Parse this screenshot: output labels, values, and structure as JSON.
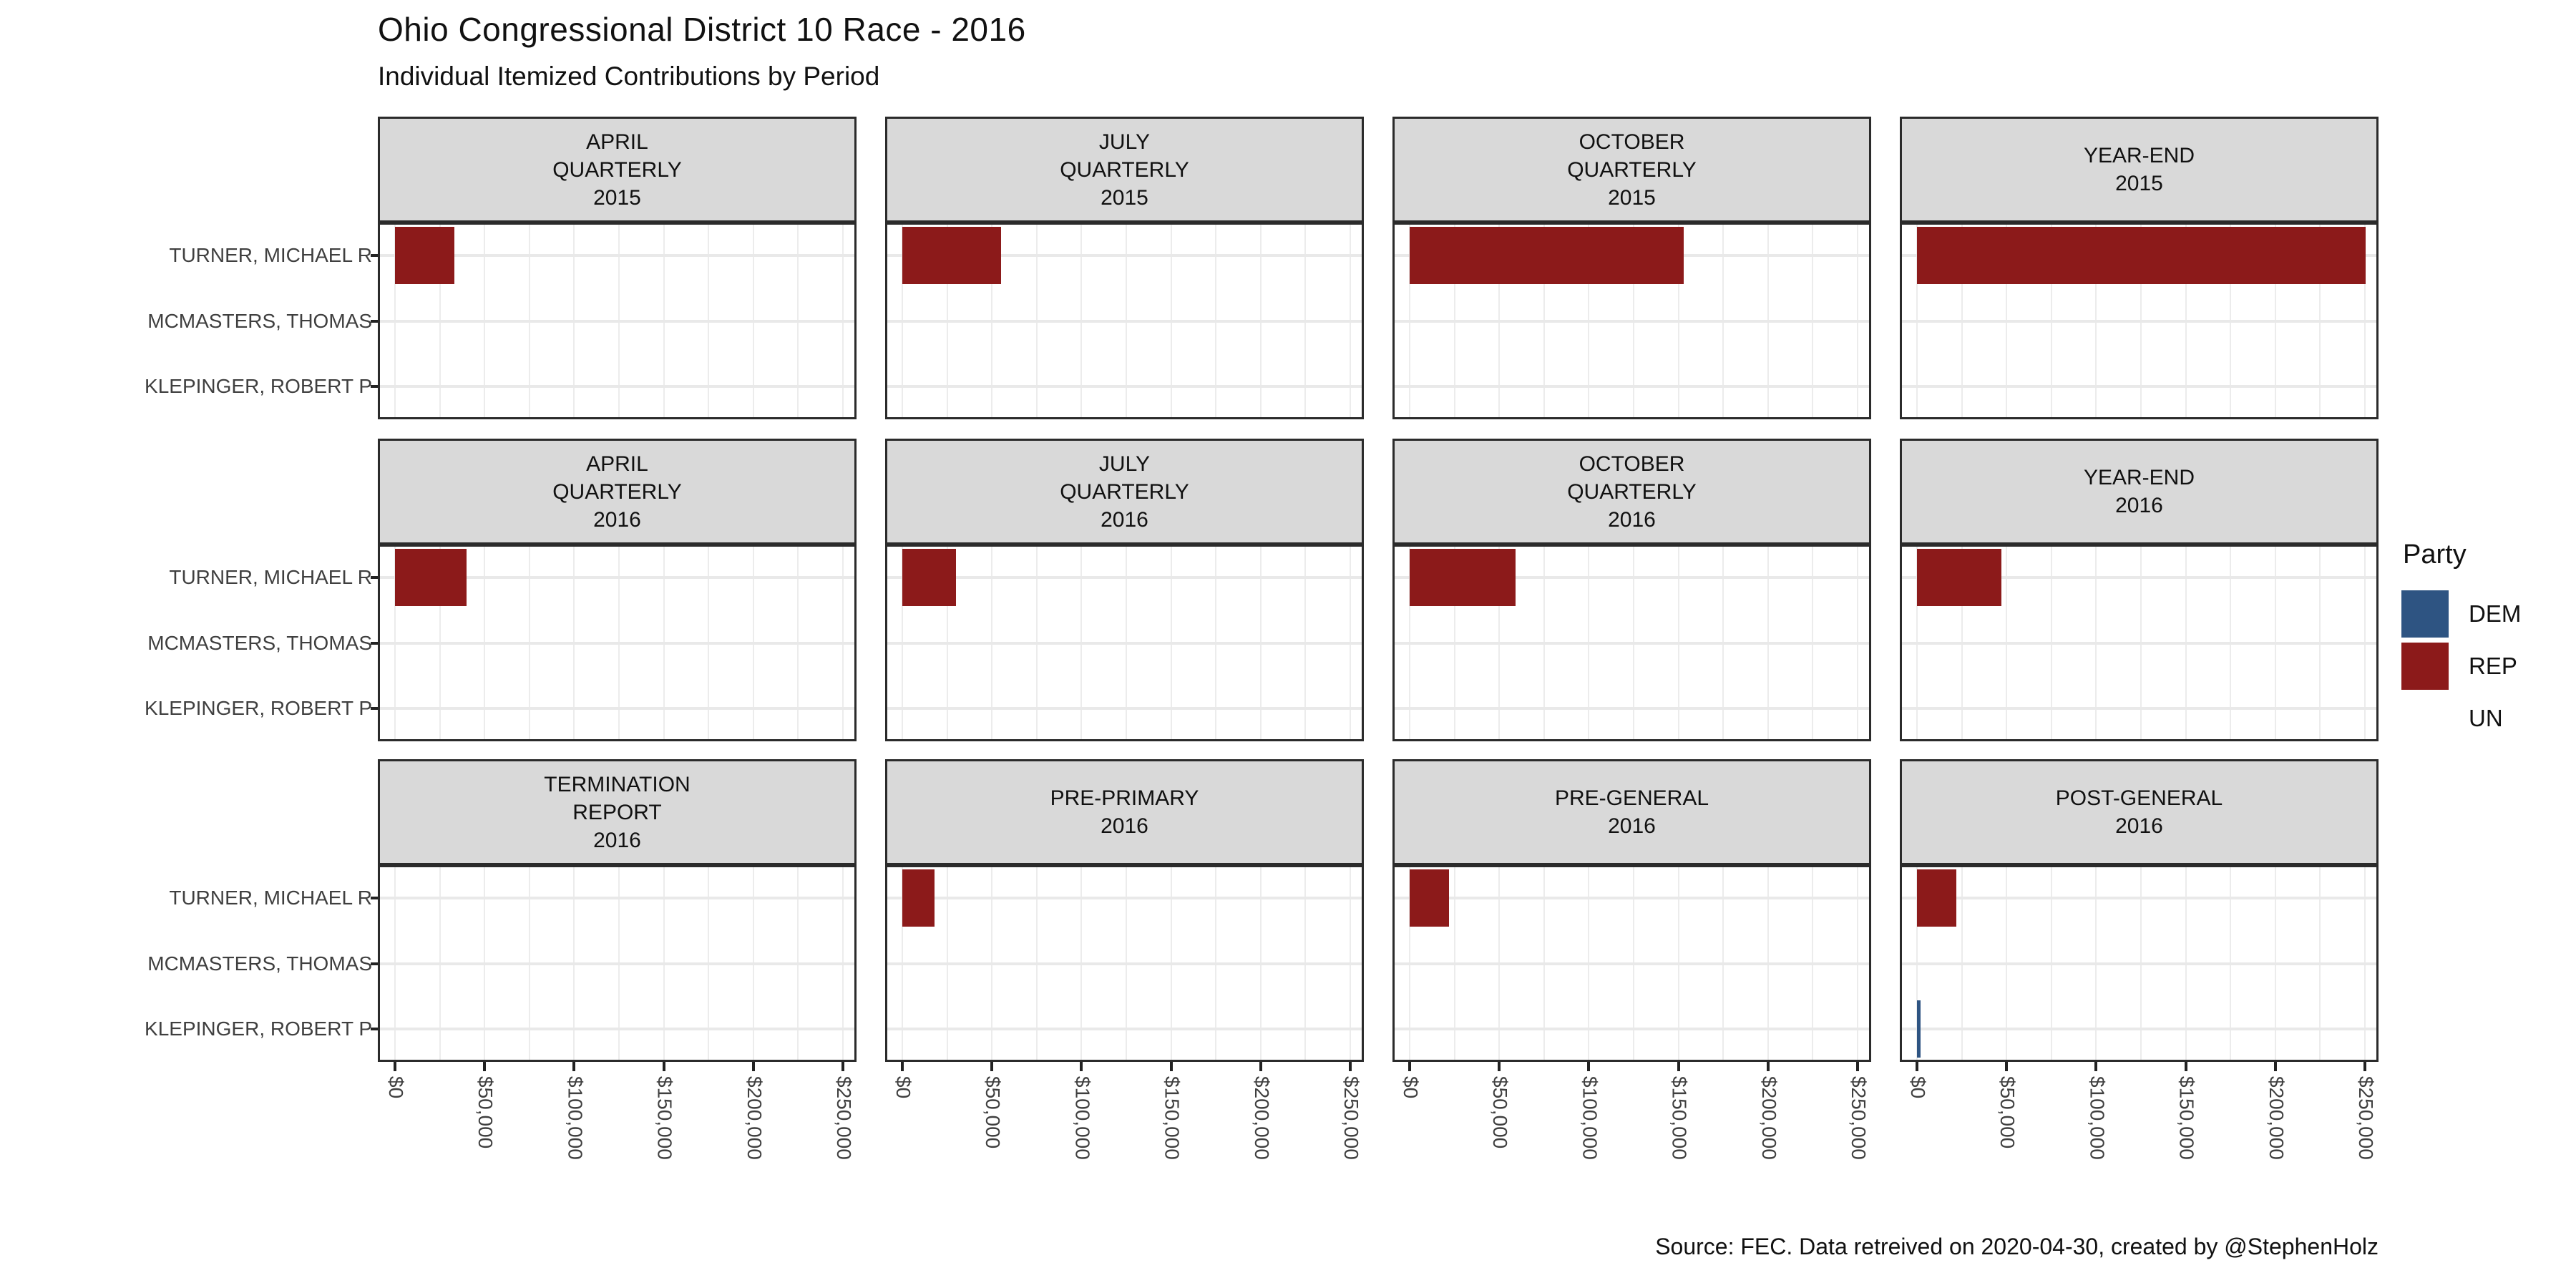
{
  "title": "Ohio Congressional District 10 Race - 2016",
  "subtitle": "Individual Itemized Contributions by Period",
  "caption": "Source: FEC. Data retreived on 2020-04-30, created by @StephenHolz",
  "legend": {
    "title": "Party",
    "entries": [
      {
        "label": "DEM",
        "color": "#2E5482"
      },
      {
        "label": "REP",
        "color": "#8C1A1A"
      },
      {
        "label": "UN",
        "color": "none"
      }
    ]
  },
  "chart_data": {
    "type": "bar",
    "orientation": "horizontal",
    "title": "Ohio Congressional District 10 Race - 2016",
    "subtitle": "Individual Itemized Contributions by Period",
    "xlabel": "",
    "ylabel": "",
    "grid": true,
    "legend_position": "right",
    "facet_grid": {
      "rows": 3,
      "cols": 4
    },
    "candidates": [
      "TURNER, MICHAEL R",
      "MCMASTERS, THOMAS",
      "KLEPINGER, ROBERT P"
    ],
    "party_colors": {
      "DEM": "#2E5482",
      "REP": "#8C1A1A",
      "UN": "none"
    },
    "x_axis": {
      "tick_values": [
        0,
        50000,
        100000,
        150000,
        200000,
        250000
      ],
      "tick_labels": [
        "$0",
        "$50,000",
        "$100,000",
        "$150,000",
        "$200,000",
        "$250,000"
      ],
      "minor_step": 25000,
      "limits": [
        0,
        250000
      ]
    },
    "facets": [
      {
        "period": "APRIL QUARTERLY 2015",
        "label_lines": [
          "APRIL",
          "QUARTERLY",
          "2015"
        ],
        "bars": [
          {
            "candidate": "TURNER, MICHAEL R",
            "party": "REP",
            "value": 33000
          }
        ]
      },
      {
        "period": "JULY QUARTERLY 2015",
        "label_lines": [
          "JULY",
          "QUARTERLY",
          "2015"
        ],
        "bars": [
          {
            "candidate": "TURNER, MICHAEL R",
            "party": "REP",
            "value": 55000
          }
        ]
      },
      {
        "period": "OCTOBER QUARTERLY 2015",
        "label_lines": [
          "OCTOBER",
          "QUARTERLY",
          "2015"
        ],
        "bars": [
          {
            "candidate": "TURNER, MICHAEL R",
            "party": "REP",
            "value": 153000
          }
        ]
      },
      {
        "period": "YEAR-END 2015",
        "label_lines": [
          "YEAR-END",
          "2015"
        ],
        "bars": [
          {
            "candidate": "TURNER, MICHAEL R",
            "party": "REP",
            "value": 250500
          }
        ]
      },
      {
        "period": "APRIL QUARTERLY 2016",
        "label_lines": [
          "APRIL",
          "QUARTERLY",
          "2016"
        ],
        "bars": [
          {
            "candidate": "TURNER, MICHAEL R",
            "party": "REP",
            "value": 40000
          }
        ]
      },
      {
        "period": "JULY QUARTERLY 2016",
        "label_lines": [
          "JULY",
          "QUARTERLY",
          "2016"
        ],
        "bars": [
          {
            "candidate": "TURNER, MICHAEL R",
            "party": "REP",
            "value": 30000
          }
        ]
      },
      {
        "period": "OCTOBER QUARTERLY 2016",
        "label_lines": [
          "OCTOBER",
          "QUARTERLY",
          "2016"
        ],
        "bars": [
          {
            "candidate": "TURNER, MICHAEL R",
            "party": "REP",
            "value": 59000
          }
        ]
      },
      {
        "period": "YEAR-END 2016",
        "label_lines": [
          "YEAR-END",
          "2016"
        ],
        "bars": [
          {
            "candidate": "TURNER, MICHAEL R",
            "party": "REP",
            "value": 47000
          }
        ]
      },
      {
        "period": "TERMINATION REPORT 2016",
        "label_lines": [
          "TERMINATION",
          "REPORT",
          "2016"
        ],
        "bars": []
      },
      {
        "period": "PRE-PRIMARY 2016",
        "label_lines": [
          "PRE-PRIMARY",
          "2016"
        ],
        "bars": [
          {
            "candidate": "TURNER, MICHAEL R",
            "party": "REP",
            "value": 18000
          }
        ]
      },
      {
        "period": "PRE-GENERAL 2016",
        "label_lines": [
          "PRE-GENERAL",
          "2016"
        ],
        "bars": [
          {
            "candidate": "TURNER, MICHAEL R",
            "party": "REP",
            "value": 22000
          }
        ]
      },
      {
        "period": "POST-GENERAL 2016",
        "label_lines": [
          "POST-GENERAL",
          "2016"
        ],
        "bars": [
          {
            "candidate": "TURNER, MICHAEL R",
            "party": "REP",
            "value": 22000
          },
          {
            "candidate": "KLEPINGER, ROBERT P",
            "party": "DEM",
            "value": 1800
          }
        ]
      }
    ]
  }
}
